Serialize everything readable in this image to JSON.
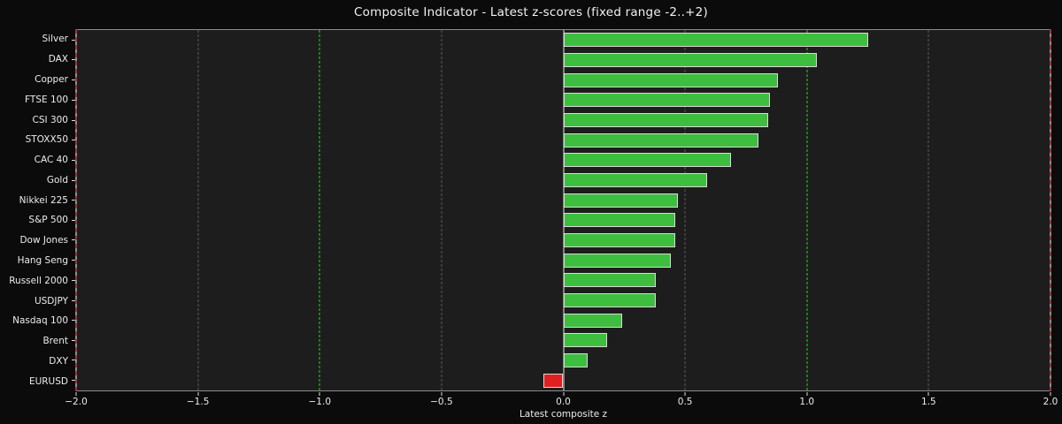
{
  "chart_data": {
    "type": "bar",
    "orientation": "horizontal",
    "title": "Composite Indicator - Latest z-scores (fixed range -2..+2)",
    "xlabel": "Latest composite z",
    "categories": [
      "Silver",
      "DAX",
      "Copper",
      "FTSE 100",
      "CSI 300",
      "STOXX50",
      "CAC 40",
      "Gold",
      "Nikkei 225",
      "S&P 500",
      "Dow Jones",
      "Hang Seng",
      "Russell 2000",
      "USDJPY",
      "Nasdaq 100",
      "Brent",
      "DXY",
      "EURUSD"
    ],
    "values": [
      1.25,
      1.04,
      0.88,
      0.85,
      0.84,
      0.8,
      0.69,
      0.59,
      0.47,
      0.46,
      0.46,
      0.44,
      0.38,
      0.38,
      0.24,
      0.18,
      0.1,
      -0.08
    ],
    "xlim": [
      -2,
      2
    ],
    "xticks": [
      {
        "value": -2.0,
        "label": "−2.0"
      },
      {
        "value": -1.5,
        "label": "−1.5"
      },
      {
        "value": -1.0,
        "label": "−1.0"
      },
      {
        "value": -0.5,
        "label": "−0.5"
      },
      {
        "value": 0.0,
        "label": "0.0"
      },
      {
        "value": 0.5,
        "label": "0.5"
      },
      {
        "value": 1.0,
        "label": "1.0"
      },
      {
        "value": 1.5,
        "label": "1.5"
      },
      {
        "value": 2.0,
        "label": "2.0"
      }
    ],
    "reference_lines": {
      "zero": 0.0,
      "green_thresholds": [
        -1.0,
        1.0
      ],
      "red_range_limits": [
        -2.0,
        2.0
      ]
    },
    "grid": "dashed vertical at each 0.5 tick",
    "legend": "none",
    "colors": {
      "positive_bar": "#3ebe3e",
      "negative_bar": "#e02020",
      "bar_edge": "#d9d9d9",
      "green_threshold_line": "#2bd02b",
      "red_limit_line": "#a83232",
      "gridline": "#5a5a5a",
      "zero_line": "#e8e8e8",
      "figure_background": "#0b0b0b",
      "plot_background": "#1d1d1d",
      "text": "#f2f2f2"
    }
  }
}
